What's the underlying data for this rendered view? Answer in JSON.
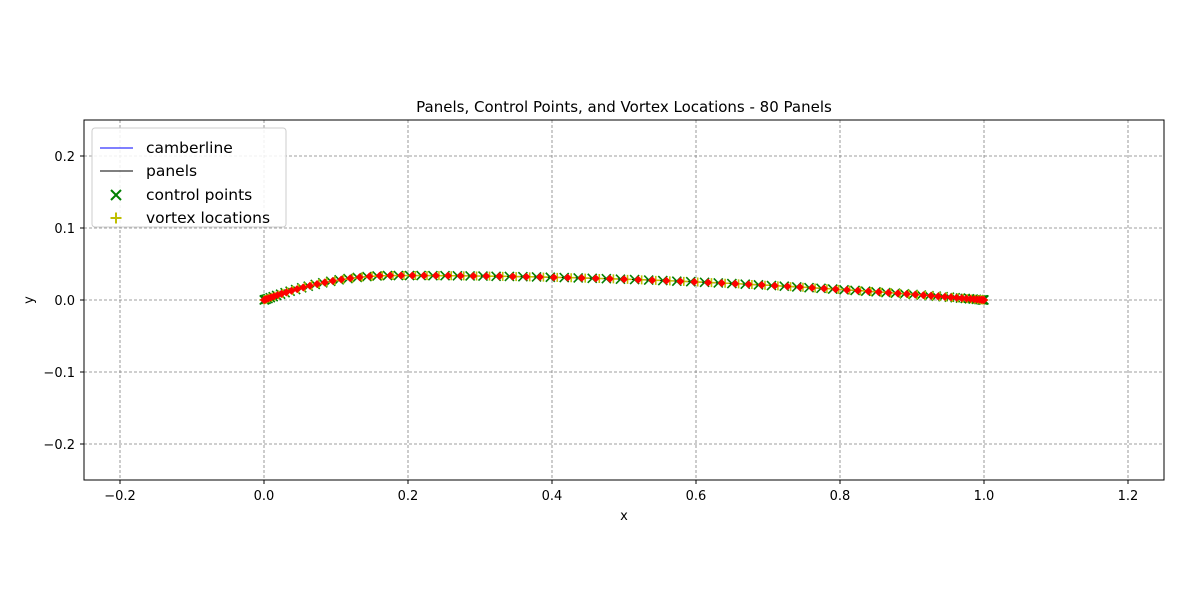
{
  "chart_data": {
    "type": "line",
    "title": "Panels, Control Points, and Vortex Locations - 80 Panels",
    "xlabel": "x",
    "ylabel": "y",
    "xlim": [
      -0.25,
      1.25
    ],
    "ylim": [
      -0.25,
      0.25
    ],
    "xticks": [
      -0.2,
      0.0,
      0.2,
      0.4,
      0.6,
      0.8,
      1.0,
      1.2
    ],
    "xtick_labels": [
      "−0.2",
      "0.0",
      "0.2",
      "0.4",
      "0.6",
      "0.8",
      "1.0",
      "1.2"
    ],
    "yticks": [
      -0.2,
      -0.1,
      0.0,
      0.1,
      0.2
    ],
    "ytick_labels": [
      "−0.2",
      "−0.1",
      "0.0",
      "0.1",
      "0.2"
    ],
    "grid": true,
    "legend_position": "top-left",
    "camber": {
      "max_camber": 0.034,
      "max_camber_position": 0.18
    },
    "panel_count": 80,
    "series": [
      {
        "name": "camberline",
        "style": "line",
        "color": "#0000ff"
      },
      {
        "name": "panels",
        "style": "line",
        "color": "#000000"
      },
      {
        "name": "control points",
        "style": "x-marker",
        "color": "#008000"
      },
      {
        "name": "vortex locations",
        "style": "plus-marker",
        "color": "#bfbf00"
      }
    ],
    "panel_node_color": "#ff0000"
  }
}
